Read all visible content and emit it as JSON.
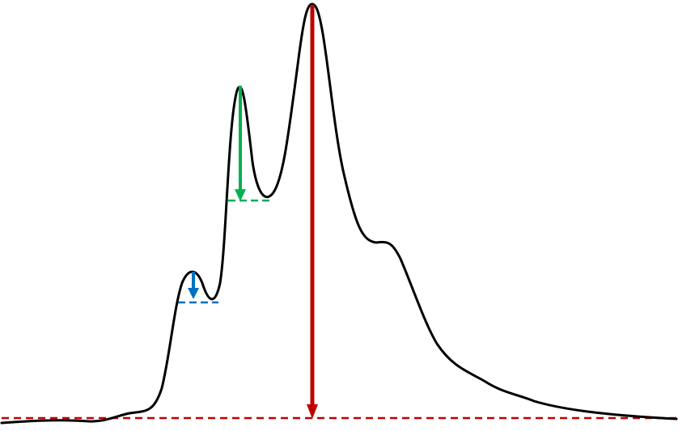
{
  "diagram": {
    "description_visible_text": [],
    "colors": {
      "curve": "#000000",
      "main_prominence": "#c00000",
      "mid_prominence": "#00b050",
      "small_prominence": "#0070c0"
    },
    "elements": [
      "signal-curve",
      "baseline",
      "main-peak-prominence-arrow",
      "second-peak-prominence-arrow",
      "shoulder-peak-prominence-arrow",
      "second-peak-reference-line",
      "shoulder-peak-reference-line"
    ]
  }
}
